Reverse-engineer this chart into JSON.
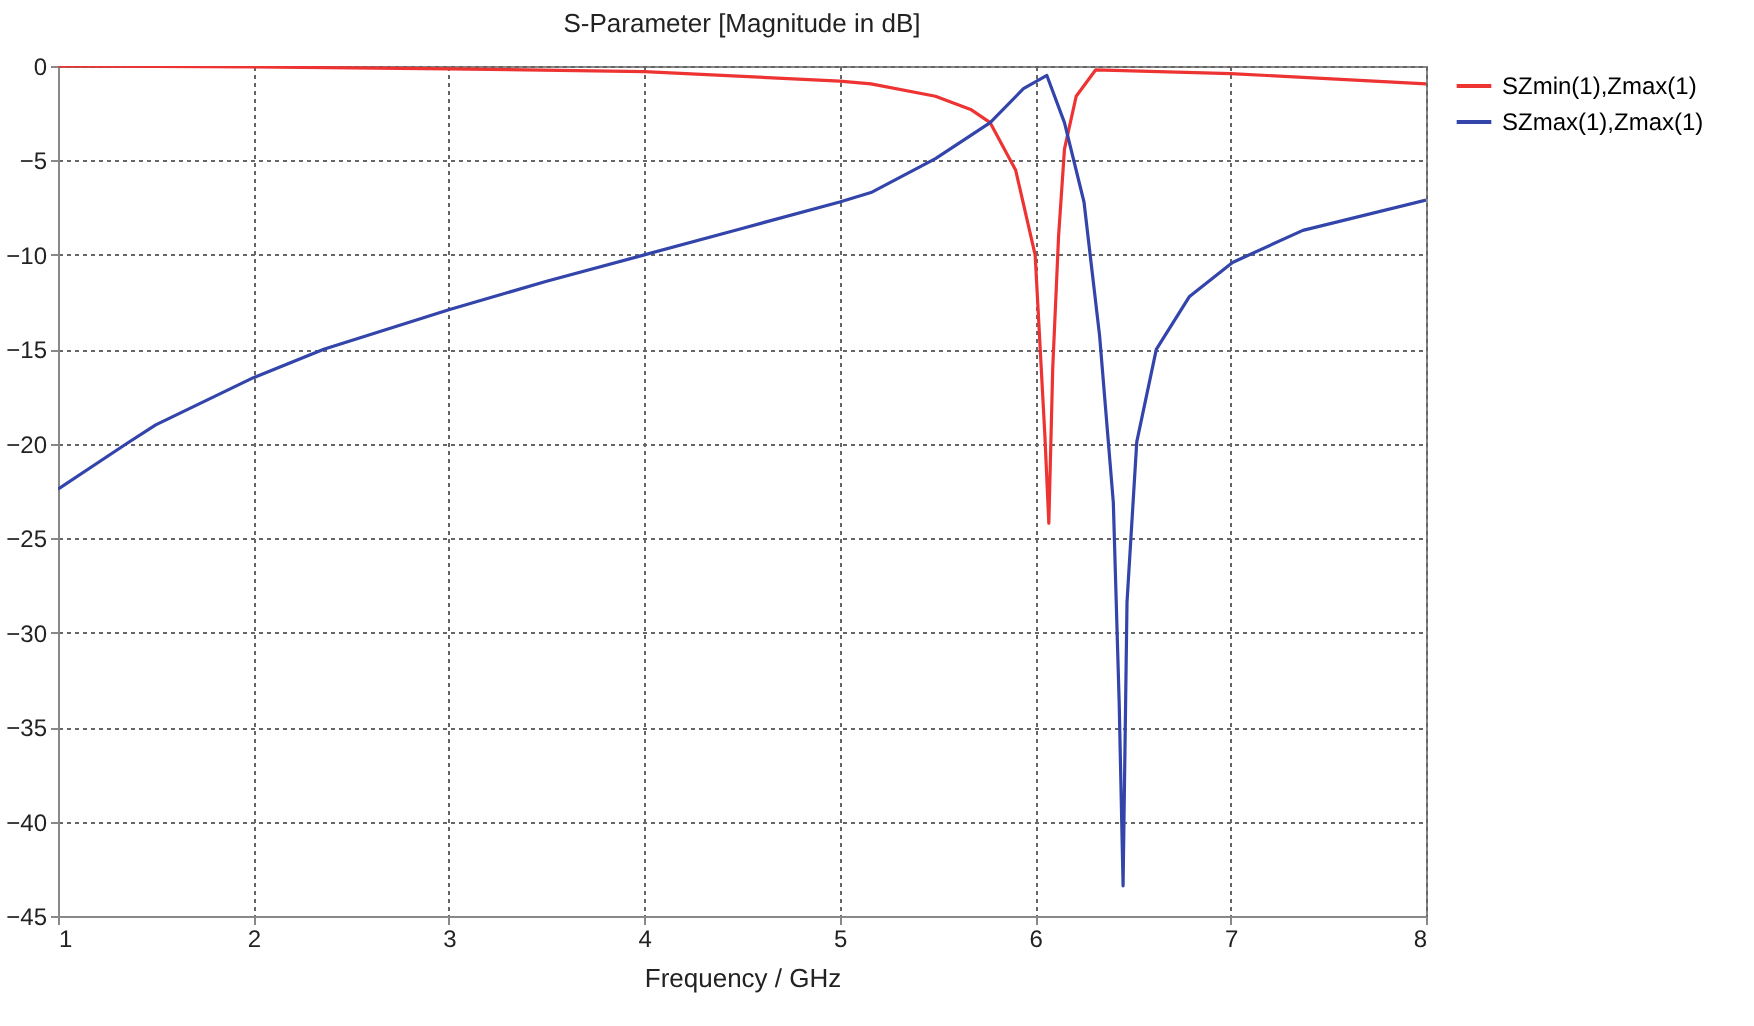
{
  "chart_data": {
    "type": "line",
    "title": "S-Parameter [Magnitude in dB]",
    "xlabel": "Frequency / GHz",
    "xlim": [
      1,
      8
    ],
    "xticks": [
      1,
      2,
      3,
      4,
      5,
      6,
      7,
      8
    ],
    "ylim": [
      -45,
      0
    ],
    "yticks": [
      -45,
      -40,
      -35,
      -30,
      -25,
      -20,
      -15,
      -10,
      -5,
      0
    ],
    "grid": true,
    "legend": "top right",
    "line_style": "solid",
    "marker": "none",
    "series": [
      {
        "name": "SZmin(1),Zmax(1)",
        "color": "#ee3333",
        "x": [
          1,
          2,
          3,
          4,
          5,
          5.16,
          5.49,
          5.67,
          5.77,
          5.9,
          6.0,
          6.05,
          6.07,
          6.09,
          6.12,
          6.15,
          6.21,
          6.31,
          7,
          8
        ],
        "values": [
          0,
          -0.05,
          -0.15,
          -0.3,
          -0.8,
          -0.95,
          -1.6,
          -2.3,
          -3.0,
          -5.5,
          -10,
          -19.6,
          -24.2,
          -16,
          -9,
          -4.4,
          -1.6,
          -0.2,
          -0.4,
          -0.95
        ]
      },
      {
        "name": "SZmax(1),Zmax(1)",
        "color": "#3344aa",
        "x": [
          1,
          1.35,
          1.5,
          2,
          2.36,
          3,
          3.5,
          4,
          4.5,
          5,
          5.16,
          5.49,
          5.77,
          5.94,
          6.06,
          6.15,
          6.25,
          6.33,
          6.4,
          6.43,
          6.45,
          6.47,
          6.52,
          6.62,
          6.79,
          7.01,
          7.37,
          8
        ],
        "values": [
          -22.4,
          -20,
          -19,
          -16.5,
          -15,
          -12.9,
          -11.4,
          -10,
          -8.6,
          -7.2,
          -6.7,
          -4.9,
          -3.0,
          -1.2,
          -0.5,
          -3,
          -7.2,
          -14.3,
          -23.1,
          -33.7,
          -43.4,
          -28.4,
          -19.9,
          -15,
          -12.2,
          -10.4,
          -8.7,
          -7.1
        ]
      }
    ]
  }
}
